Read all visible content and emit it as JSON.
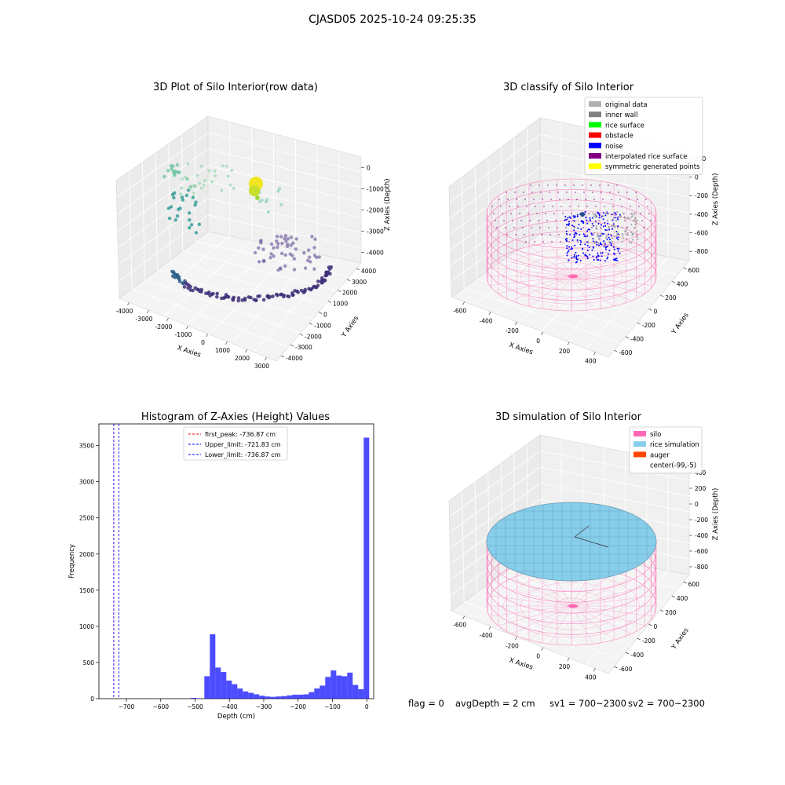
{
  "figure_title": "CJASD05 2025-10-24 09:25:35",
  "panels": {
    "raw": {
      "title": "3D Plot of Silo Interior(row data)",
      "xlabel": "X Axies",
      "ylabel": "Y Axies",
      "zlabel": "Z Axies (Depth)",
      "x_ticks": [
        "-4000",
        "-3000",
        "-2000",
        "-1000",
        "0",
        "1000",
        "2000",
        "3000"
      ],
      "y_ticks": [
        "4000",
        "3000",
        "2000",
        "1000",
        "0",
        "-1000",
        "-2000",
        "-3000",
        "-4000"
      ],
      "z_ticks": [
        "0",
        "-1000",
        "-2000",
        "-3000",
        "-4000"
      ]
    },
    "classify": {
      "title": "3D classify of Silo Interior",
      "xlabel": "X Axies",
      "ylabel": "Y Axies",
      "zlabel": "Z Axies (Depth)",
      "x_ticks": [
        "-600",
        "-400",
        "-200",
        "0",
        "200",
        "400"
      ],
      "y_ticks": [
        "600",
        "400",
        "200",
        "0",
        "-200",
        "-400",
        "-600"
      ],
      "z_ticks": [
        "200",
        "0",
        "-200",
        "-400",
        "-600",
        "-800"
      ],
      "legend": [
        {
          "label": "original data",
          "color": "#b0b0b0"
        },
        {
          "label": "inner wall",
          "color": "#808080"
        },
        {
          "label": "rice surface",
          "color": "#00ff00"
        },
        {
          "label": "obstacle",
          "color": "#ff0000"
        },
        {
          "label": "noise",
          "color": "#0000ff"
        },
        {
          "label": "interpolated rice surface",
          "color": "#800080"
        },
        {
          "label": "symmetric generated points",
          "color": "#ffff00"
        }
      ]
    },
    "simulation": {
      "title": "3D simulation of Silo Interior",
      "xlabel": "X Axies",
      "ylabel": "Y Axies",
      "zlabel": "Z Axies (Depth)",
      "x_ticks": [
        "-600",
        "-400",
        "-200",
        "0",
        "200",
        "400"
      ],
      "y_ticks": [
        "600",
        "400",
        "200",
        "0",
        "-200",
        "-400",
        "-600"
      ],
      "z_ticks": [
        "400",
        "200",
        "0",
        "-200",
        "-400",
        "-600",
        "-800"
      ],
      "legend": [
        {
          "label": "silo",
          "color": "#ff69b4"
        },
        {
          "label": "rice simulation",
          "color": "#87ceeb"
        },
        {
          "label": "auger",
          "color": "#ff4500"
        },
        {
          "label": "center(-99,-5)",
          "color": ""
        }
      ]
    }
  },
  "chart_data": {
    "type": "bar",
    "title": "Histogram of Z-Axies (Height) Values",
    "xlabel": "Depth (cm)",
    "ylabel": "Frequency",
    "xlim": [
      -780,
      20
    ],
    "ylim": [
      0,
      3800
    ],
    "x_ticks": [
      -700,
      -600,
      -500,
      -400,
      -300,
      -200,
      -100,
      0
    ],
    "y_ticks": [
      0,
      500,
      1000,
      1500,
      2000,
      2500,
      3000,
      3500
    ],
    "bar_color": "#0000ff",
    "bin_width": 16,
    "bins": [
      {
        "x": -505,
        "value": 10
      },
      {
        "x": -489,
        "value": 5
      },
      {
        "x": -465,
        "value": 310
      },
      {
        "x": -449,
        "value": 890
      },
      {
        "x": -433,
        "value": 430
      },
      {
        "x": -417,
        "value": 370
      },
      {
        "x": -401,
        "value": 250
      },
      {
        "x": -385,
        "value": 200
      },
      {
        "x": -369,
        "value": 140
      },
      {
        "x": -353,
        "value": 100
      },
      {
        "x": -337,
        "value": 80
      },
      {
        "x": -321,
        "value": 60
      },
      {
        "x": -305,
        "value": 40
      },
      {
        "x": -289,
        "value": 30
      },
      {
        "x": -273,
        "value": 25
      },
      {
        "x": -257,
        "value": 30
      },
      {
        "x": -241,
        "value": 35
      },
      {
        "x": -225,
        "value": 45
      },
      {
        "x": -209,
        "value": 55
      },
      {
        "x": -193,
        "value": 55
      },
      {
        "x": -177,
        "value": 60
      },
      {
        "x": -161,
        "value": 90
      },
      {
        "x": -145,
        "value": 140
      },
      {
        "x": -129,
        "value": 180
      },
      {
        "x": -113,
        "value": 300
      },
      {
        "x": -97,
        "value": 390
      },
      {
        "x": -81,
        "value": 320
      },
      {
        "x": -65,
        "value": 310
      },
      {
        "x": -49,
        "value": 360
      },
      {
        "x": -33,
        "value": 190
      },
      {
        "x": -17,
        "value": 130
      },
      {
        "x": -1,
        "value": 3610
      }
    ],
    "vlines": [
      {
        "label": "first_peak: -736.87 cm",
        "x": -736.87,
        "color": "#ff0000"
      },
      {
        "label": "Upper_limit: -721.83 cm",
        "x": -721.83,
        "color": "#0000ff"
      },
      {
        "label": "Lower_limit: -736.87 cm",
        "x": -736.87,
        "color": "#0000ff"
      }
    ],
    "legend_position": "top-center"
  },
  "status": {
    "flag": "flag = 0",
    "avg_depth": "avgDepth = 2 cm",
    "sv1": "sv1 = 700~2300",
    "sv2": "sv2 = 700~2300"
  }
}
